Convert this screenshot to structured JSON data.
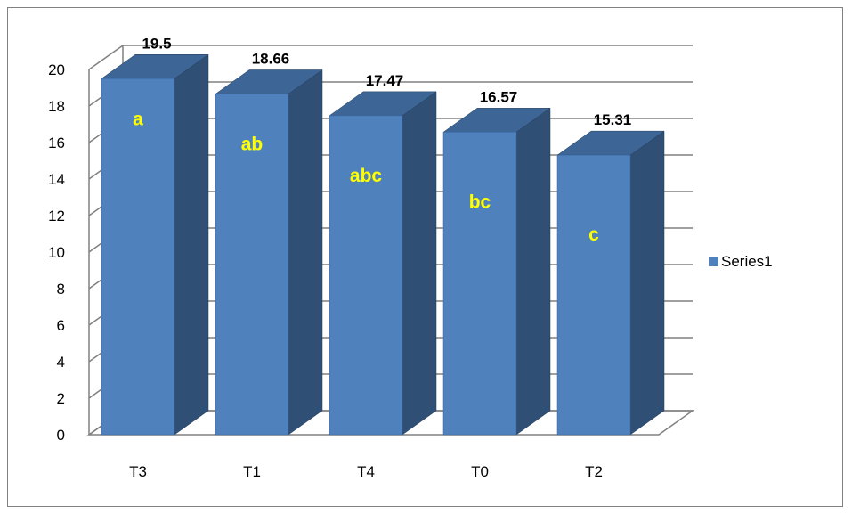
{
  "chart_data": {
    "type": "bar",
    "three_d": true,
    "categories": [
      "T3",
      "T1",
      "T4",
      "T0",
      "T2"
    ],
    "series": [
      {
        "name": "Series1",
        "values": [
          19.5,
          18.66,
          17.47,
          16.57,
          15.31
        ]
      }
    ],
    "data_labels": [
      "19.5",
      "18.66",
      "17.47",
      "16.57",
      "15.31"
    ],
    "annotations": [
      "a",
      "ab",
      "abc",
      "bc",
      "c"
    ],
    "ylim": [
      0,
      20
    ],
    "yticks": [
      0,
      2,
      4,
      6,
      8,
      10,
      12,
      14,
      16,
      18,
      20
    ],
    "title": "",
    "xlabel": "",
    "ylabel": "",
    "grid": true,
    "legend_position": "right",
    "colors": {
      "bar_front": "#4f81bd",
      "bar_side": "#2f4f75",
      "bar_top": "#3d6596",
      "annotation_text": "#ffff00",
      "gridline": "#808080"
    }
  }
}
